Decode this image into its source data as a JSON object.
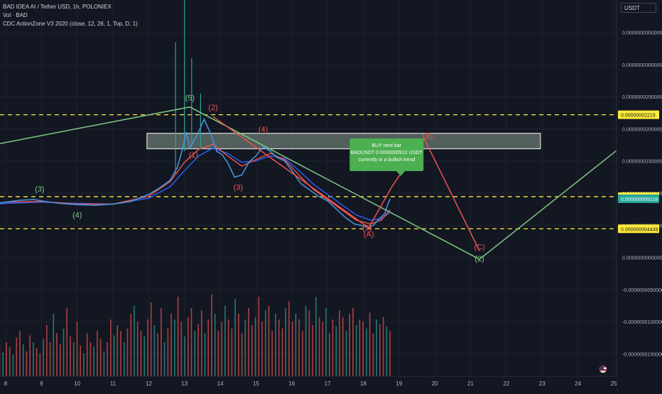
{
  "header": {
    "symbol_line": "BAD IDEA AI / Tether USD, 1h, POLONIEX",
    "volume_line": "Vol · BAD",
    "indicator_line": "CDC ActionZone V3 2020 (close, 12, 26, 1, Top, D, 1)"
  },
  "currency_button": "USDT",
  "chart_data": {
    "type": "line",
    "title": "BAD IDEA AI / Tether USD, 1h, POLONIEX",
    "x_axis": {
      "ticks": [
        {
          "t": 0,
          "label": "8"
        },
        {
          "t": 1,
          "label": "9"
        },
        {
          "t": 2,
          "label": "10"
        },
        {
          "t": 3,
          "label": "11"
        },
        {
          "t": 4,
          "label": "12"
        },
        {
          "t": 5,
          "label": "13"
        },
        {
          "t": 6,
          "label": "14"
        },
        {
          "t": 7,
          "label": "15"
        },
        {
          "t": 8,
          "label": "16"
        },
        {
          "t": 9,
          "label": "17"
        },
        {
          "t": 10,
          "label": "18"
        },
        {
          "t": 11,
          "label": "19"
        },
        {
          "t": 12,
          "label": "20"
        },
        {
          "t": 13,
          "label": "21"
        },
        {
          "t": 14,
          "label": "22"
        },
        {
          "t": 15,
          "label": "23"
        },
        {
          "t": 16,
          "label": "24"
        },
        {
          "t": 17,
          "label": "25"
        }
      ]
    },
    "y_axis": {
      "unit": "USDT",
      "ylim": [
        -1.85e-08,
        3.85e-08
      ],
      "tick_labels": [
        {
          "value": 3.5e-08,
          "label": "0.0000000350000"
        },
        {
          "value": 3e-08,
          "label": "0.0000000300000"
        },
        {
          "value": 2.5e-08,
          "label": "0.0000000250000"
        },
        {
          "value": 2e-08,
          "label": "0.0000000200000"
        },
        {
          "value": 1.5e-08,
          "label": "0.0000000150000"
        },
        {
          "value": 1e-08,
          "label": "0.0000000100000"
        },
        {
          "value": 5e-09,
          "label": "0.0000000050000"
        },
        {
          "value": 0,
          "label": "0.0000000000000"
        },
        {
          "value": -5e-09,
          "label": "-0.0000000050000"
        },
        {
          "value": -1e-08,
          "label": "-0.0000000100000"
        },
        {
          "value": -1.5e-08,
          "label": "-0.0000000150000"
        }
      ]
    },
    "price_series": [
      [
        -1.2,
        7.8e-09
      ],
      [
        -0.5,
        8.2e-09
      ],
      [
        0.0,
        8.6e-09
      ],
      [
        0.4,
        8.9e-09
      ],
      [
        0.8,
        9e-09
      ],
      [
        1.1,
        8.7e-09
      ],
      [
        1.5,
        8.4e-09
      ],
      [
        2.0,
        8.2e-09
      ],
      [
        2.5,
        8.1e-09
      ],
      [
        3.0,
        8.3e-09
      ],
      [
        3.5,
        8.7e-09
      ],
      [
        4.0,
        9.8e-09
      ],
      [
        4.3,
        1.08e-08
      ],
      [
        4.6,
        1.2e-08
      ],
      [
        4.8,
        1.4e-08
      ],
      [
        4.95,
        1.7e-08
      ],
      [
        5.05,
        1.95e-08
      ],
      [
        5.15,
        1.7e-08
      ],
      [
        5.35,
        1.9e-08
      ],
      [
        5.55,
        2.15e-08
      ],
      [
        5.75,
        1.9e-08
      ],
      [
        5.9,
        1.65e-08
      ],
      [
        6.05,
        1.6e-08
      ],
      [
        6.2,
        1.48e-08
      ],
      [
        6.4,
        1.25e-08
      ],
      [
        6.6,
        1.28e-08
      ],
      [
        6.8,
        1.48e-08
      ],
      [
        7.0,
        1.58e-08
      ],
      [
        7.2,
        1.72e-08
      ],
      [
        7.4,
        1.65e-08
      ],
      [
        7.6,
        1.55e-08
      ],
      [
        7.8,
        1.5e-08
      ],
      [
        8.0,
        1.35e-08
      ],
      [
        8.25,
        1.15e-08
      ],
      [
        8.5,
        1.05e-08
      ],
      [
        8.75,
        9.5e-09
      ],
      [
        9.0,
        8.8e-09
      ],
      [
        9.25,
        7.5e-09
      ],
      [
        9.5,
        6.2e-09
      ],
      [
        9.75,
        5.2e-09
      ],
      [
        10.0,
        4.9e-09
      ],
      [
        10.15,
        4.6e-09
      ],
      [
        10.3,
        5.1e-09
      ],
      [
        10.45,
        6e-09
      ],
      [
        10.6,
        6.8e-09
      ],
      [
        10.7,
        8.5e-09
      ],
      [
        10.75,
        9.1e-09
      ]
    ],
    "ema_fast": [
      [
        -1.2,
        7.9e-09
      ],
      [
        0.0,
        8.6e-09
      ],
      [
        1.0,
        8.7e-09
      ],
      [
        2.0,
        8.3e-09
      ],
      [
        3.0,
        8.3e-09
      ],
      [
        4.0,
        9.5e-09
      ],
      [
        4.6,
        1.18e-08
      ],
      [
        5.0,
        1.48e-08
      ],
      [
        5.4,
        1.68e-08
      ],
      [
        5.8,
        1.76e-08
      ],
      [
        6.2,
        1.58e-08
      ],
      [
        6.6,
        1.42e-08
      ],
      [
        7.0,
        1.52e-08
      ],
      [
        7.4,
        1.62e-08
      ],
      [
        7.8,
        1.52e-08
      ],
      [
        8.2,
        1.28e-08
      ],
      [
        8.6,
        1.06e-08
      ],
      [
        9.0,
        9e-09
      ],
      [
        9.4,
        7.4e-09
      ],
      [
        9.8,
        5.8e-09
      ],
      [
        10.2,
        5.2e-09
      ],
      [
        10.5,
        5.8e-09
      ],
      [
        10.75,
        7.4e-09
      ]
    ],
    "ema_slow": [
      [
        -1.2,
        7.8e-09
      ],
      [
        0.0,
        8.4e-09
      ],
      [
        1.0,
        8.6e-09
      ],
      [
        2.0,
        8.4e-09
      ],
      [
        3.0,
        8.3e-09
      ],
      [
        4.0,
        9.2e-09
      ],
      [
        4.6,
        1.1e-08
      ],
      [
        5.0,
        1.35e-08
      ],
      [
        5.4,
        1.58e-08
      ],
      [
        5.8,
        1.7e-08
      ],
      [
        6.2,
        1.62e-08
      ],
      [
        6.6,
        1.48e-08
      ],
      [
        7.0,
        1.5e-08
      ],
      [
        7.4,
        1.58e-08
      ],
      [
        7.8,
        1.54e-08
      ],
      [
        8.2,
        1.35e-08
      ],
      [
        8.6,
        1.14e-08
      ],
      [
        9.0,
        9.8e-09
      ],
      [
        9.4,
        8.2e-09
      ],
      [
        9.8,
        6.6e-09
      ],
      [
        10.2,
        5.8e-09
      ],
      [
        10.5,
        6e-09
      ],
      [
        10.75,
        7e-09
      ]
    ],
    "spikes": [
      {
        "t": 5.0,
        "high": 4.85e-08,
        "low": 1.65e-08
      },
      {
        "t": 5.2,
        "high": 3.1e-08,
        "low": 1.75e-08
      },
      {
        "t": 5.45,
        "high": 2.55e-08,
        "low": 1.7e-08
      },
      {
        "t": 4.75,
        "high": 3.35e-08,
        "low": 1.3e-08
      }
    ],
    "horizontal_levels": [
      {
        "value": 2.219e-08,
        "label": "0.00000002219"
      },
      {
        "value": 9.441e-09,
        "label": "0.000000009441"
      },
      {
        "value": 4.449e-09,
        "label": "0.000000004449"
      }
    ],
    "last_price": {
      "value": 9.118e-09,
      "label": "0.000000009118"
    },
    "zone_box": {
      "t_start": 3.95,
      "t_end": 14.95,
      "y_top": 1.93e-08,
      "y_bottom": 1.69e-08
    },
    "green_wave": [
      [
        -1.2,
        1.66e-08
      ],
      [
        5.15,
        2.34e-08
      ],
      [
        13.25,
        -3e-10
      ],
      [
        17.8,
        1.98e-08
      ]
    ],
    "red_wave": [
      [
        5.8,
        2.19e-08
      ],
      [
        10.15,
        4.6e-09
      ],
      [
        10.8,
        1.1e-08
      ],
      [
        11.7,
        1.85e-08
      ],
      [
        13.25,
        1e-09
      ]
    ],
    "green_labels": [
      {
        "t": 0.95,
        "y": 1.02e-08,
        "text": "(3)"
      },
      {
        "t": 2.0,
        "y": 6.2e-09,
        "text": "(4)"
      },
      {
        "t": 5.15,
        "y": 2.44e-08,
        "text": "(5)"
      },
      {
        "t": 13.25,
        "y": -6e-10,
        "text": "(2)"
      }
    ],
    "red_labels": [
      {
        "t": 5.8,
        "y": 2.29e-08,
        "text": "(2)"
      },
      {
        "t": 5.25,
        "y": 1.55e-08,
        "text": "(1)"
      },
      {
        "t": 6.5,
        "y": 1.05e-08,
        "text": "(3)"
      },
      {
        "t": 7.2,
        "y": 1.95e-08,
        "text": "(4)"
      },
      {
        "t": 10.1,
        "y": 4.2e-09,
        "text": "(5)"
      },
      {
        "t": 10.15,
        "y": 3.2e-09,
        "text": "(A)"
      },
      {
        "t": 11.8,
        "y": 1.85e-08,
        "text": "(B)"
      },
      {
        "t": 13.25,
        "y": 1.2e-09,
        "text": "(C)"
      }
    ],
    "annotation": {
      "t": 10.65,
      "y": 1.85e-08,
      "lines": [
        "BUY next bar",
        "BADUSDT 0.0000000912 USDT",
        "currently in a bullish trend"
      ],
      "color": "#4caf50"
    },
    "volume": {
      "heights": [
        0.22,
        0.3,
        0.18,
        0.26,
        0.35,
        0.2,
        0.15,
        0.28,
        0.32,
        0.24,
        0.18,
        0.27,
        0.21,
        0.3,
        0.26,
        0.19,
        0.34,
        0.4,
        0.28,
        0.22,
        0.36,
        0.3,
        0.25,
        0.2,
        0.33,
        0.45,
        0.3,
        0.55,
        0.38,
        0.28,
        0.42,
        0.6,
        0.35,
        0.3,
        0.48,
        0.27,
        0.2,
        0.38,
        0.3,
        0.26,
        0.4,
        0.33,
        0.22,
        0.3,
        0.5,
        0.36,
        0.45,
        0.4,
        0.3,
        0.42,
        0.55,
        0.62,
        0.48,
        0.4,
        0.35,
        0.5,
        0.65,
        0.45,
        0.38,
        0.6,
        0.3,
        0.42,
        0.55,
        0.5,
        0.7,
        0.48,
        0.35,
        0.52,
        0.6,
        0.4,
        0.46,
        0.58,
        0.38,
        0.5,
        0.72,
        0.55,
        0.4,
        0.48,
        0.62,
        0.5,
        0.42,
        0.68,
        0.55,
        0.38,
        0.5,
        0.6,
        0.45,
        0.52,
        0.7,
        0.48,
        0.58,
        0.62,
        0.4,
        0.55,
        0.5,
        0.42,
        0.6,
        0.66,
        0.48,
        0.55,
        0.5,
        0.4,
        0.62,
        0.58,
        0.45,
        0.7,
        0.52,
        0.48,
        0.6,
        0.38,
        0.5,
        0.44,
        0.58,
        0.52,
        0.4,
        0.55,
        0.6,
        0.45,
        0.5,
        0.48,
        0.42,
        0.56,
        0.38,
        0.5,
        0.46,
        0.52,
        0.44,
        0.4
      ]
    },
    "colors": {
      "background": "#131722",
      "grid": "#1e222d",
      "price": "#4a90d9",
      "ema_fast": "#ef5350",
      "ema_slow": "#2962ff",
      "wave_green": "#81c784",
      "wave_red": "#ef5350",
      "level_line": "#ffeb3b",
      "volume_up": "#26a69a",
      "volume_down": "#ef5350"
    }
  }
}
